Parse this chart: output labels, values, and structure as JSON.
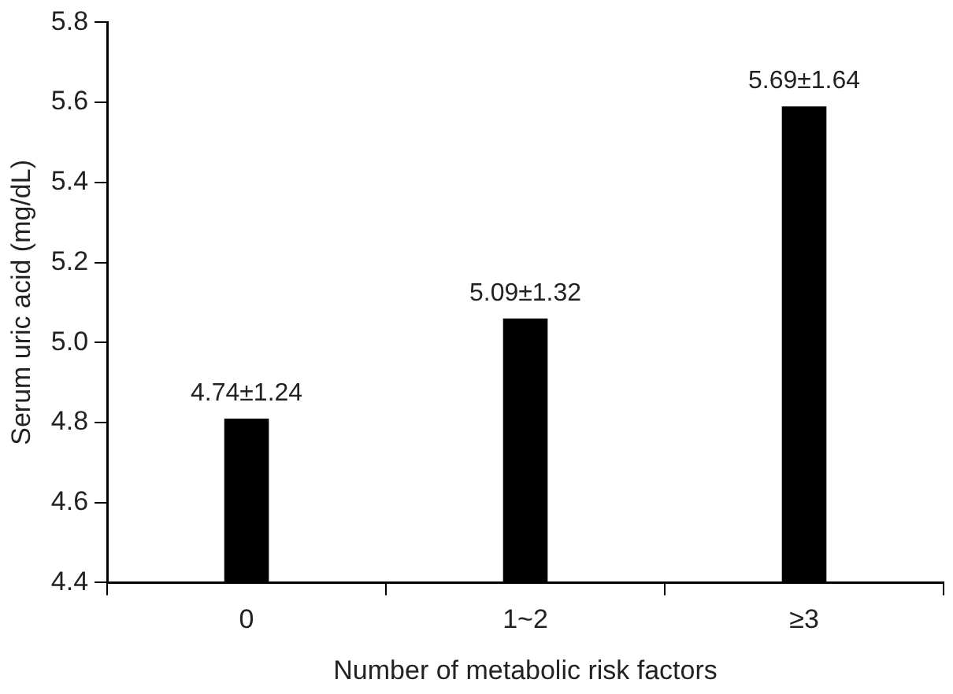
{
  "chart_data": {
    "type": "bar",
    "xlabel": "Number of metabolic risk factors",
    "ylabel": "Serum uric acid (mg/dL)",
    "categories": [
      "0",
      "1~2",
      "≥3"
    ],
    "values": [
      4.81,
      5.06,
      5.59
    ],
    "color": "#000000",
    "ylim": [
      4.4,
      5.8
    ],
    "yticks": [
      4.4,
      4.6,
      4.8,
      {
        "value": 5,
        "label": "5.0"
      },
      5.2,
      5.4,
      5.6,
      5.8
    ],
    "grid": false,
    "legend": false,
    "annotations": [
      {
        "text": "4.74±1.24",
        "x": "0",
        "y": 4.81
      },
      {
        "text": "5.09±1.32",
        "x": "1~2",
        "y": 5.06
      },
      {
        "text": "5.69±1.64",
        "x": "≥3",
        "y": 5.59
      }
    ]
  }
}
